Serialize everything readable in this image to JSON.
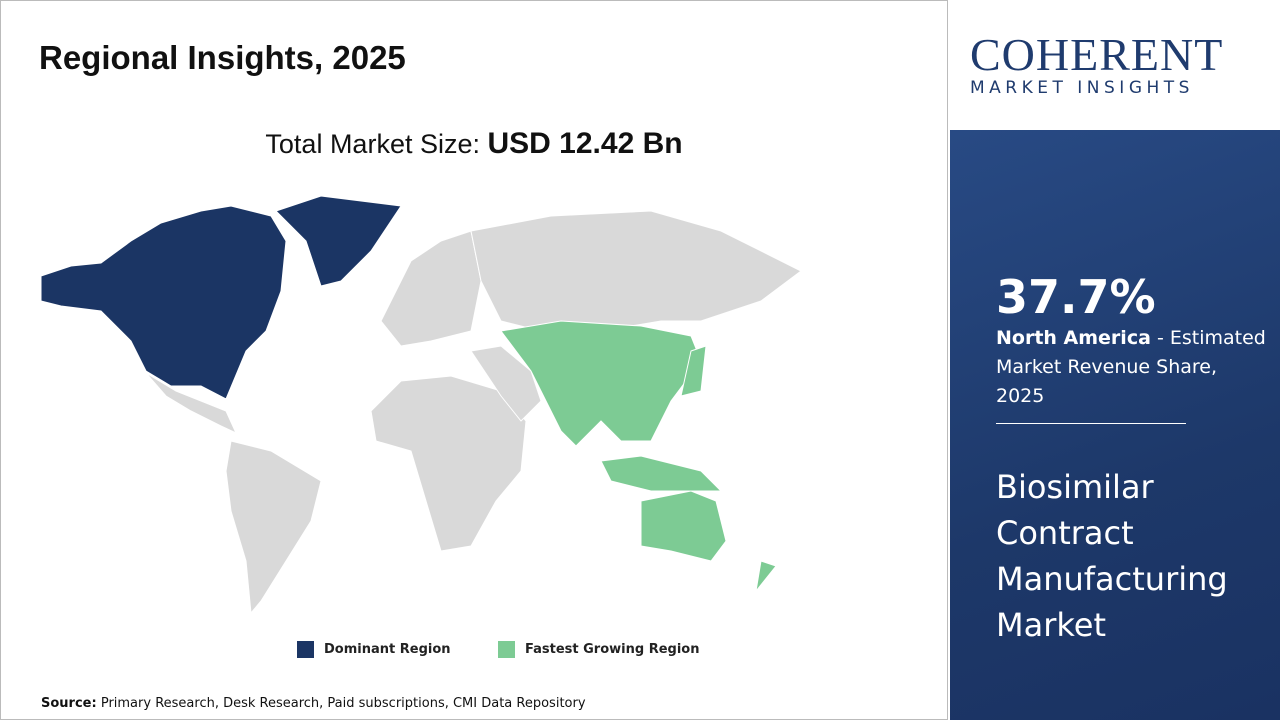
{
  "header": {
    "title": "Regional Insights, 2025"
  },
  "total": {
    "label": "Total Market Size:",
    "value": "USD 12.42 Bn"
  },
  "legend": [
    {
      "label": "Dominant Region",
      "color": "#1b3564"
    },
    {
      "label": "Fastest Growing Region",
      "color": "#7dcb94"
    }
  ],
  "source": {
    "label": "Source:",
    "text": "Primary Research, Desk Research, Paid subscriptions, CMI Data Repository"
  },
  "logo": {
    "name": "COHERENT",
    "tagline": "MARKET INSIGHTS"
  },
  "sidebar": {
    "stat": "37.7%",
    "region": "North America",
    "description": "- Estimated Market Revenue Share, 2025",
    "market": "Biosimilar Contract Manufacturing Market"
  }
}
